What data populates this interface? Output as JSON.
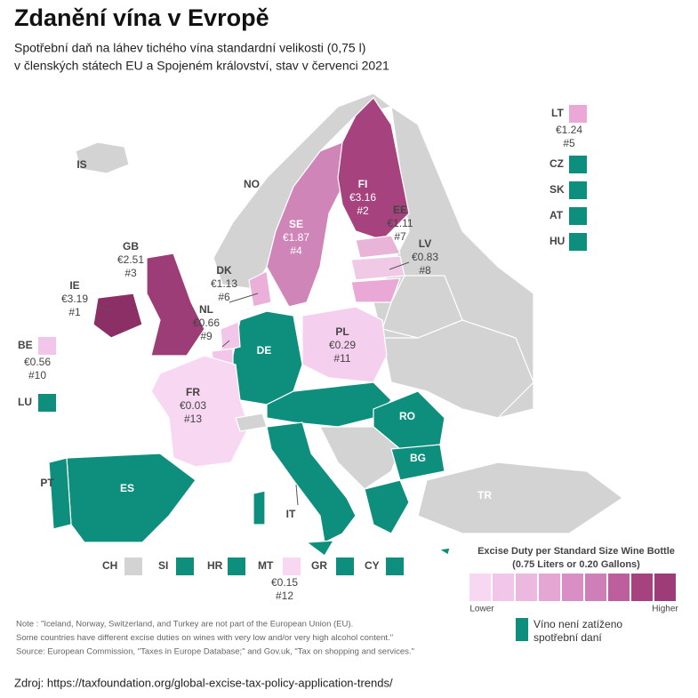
{
  "header": {
    "title": "Zdanění vína v Evropě",
    "subtitle": [
      "Spotřební daň na láhev tichého vína standardní velikosti (0,75 l)",
      "v členských státech EU a Spojeném království, stav v červenci 2021"
    ]
  },
  "map_labels": [
    {
      "code": "IS"
    },
    {
      "code": "NO"
    },
    {
      "code": "FI",
      "value": "€3.16",
      "rank": "#2"
    },
    {
      "code": "SE",
      "value": "€1.87",
      "rank": "#4"
    },
    {
      "code": "EE",
      "value": "€1.11",
      "rank": "#7"
    },
    {
      "code": "LV",
      "value": "€0.83",
      "rank": "#8"
    },
    {
      "code": "GB",
      "value": "€2.51",
      "rank": "#3"
    },
    {
      "code": "DK",
      "value": "€1.13",
      "rank": "#6"
    },
    {
      "code": "IE",
      "value": "€3.19",
      "rank": "#1"
    },
    {
      "code": "NL",
      "value": "€0.66",
      "rank": "#9"
    },
    {
      "code": "PL",
      "value": "€0.29",
      "rank": "#11"
    },
    {
      "code": "DE"
    },
    {
      "code": "FR",
      "value": "€0.03",
      "rank": "#13"
    },
    {
      "code": "RO"
    },
    {
      "code": "BG"
    },
    {
      "code": "ES"
    },
    {
      "code": "PT"
    },
    {
      "code": "IT"
    },
    {
      "code": "TR"
    }
  ],
  "side_keys": [
    {
      "code": "BE",
      "value": "€0.56",
      "rank": "#10"
    },
    {
      "code": "LU"
    },
    {
      "code": "LT",
      "value": "€1.24",
      "rank": "#5"
    },
    {
      "code": "CZ"
    },
    {
      "code": "SK"
    },
    {
      "code": "AT"
    },
    {
      "code": "HU"
    },
    {
      "code": "CH"
    },
    {
      "code": "SI"
    },
    {
      "code": "HR"
    },
    {
      "code": "MT",
      "value": "€0.15",
      "rank": "#12"
    },
    {
      "code": "GR"
    },
    {
      "code": "CY"
    }
  ],
  "legend": {
    "title": [
      "Excise Duty per Standard Size Wine Bottle",
      "(0.75 Liters or 0.20 Gallons)"
    ],
    "lower": "Lower",
    "higher": "Higher",
    "no_tax": [
      "Víno není zatíženo",
      "spotřební daní"
    ]
  },
  "note": [
    "Note : \"Iceland, Norway, Switzerland, and Turkey are not part of the European Union (EU).",
    "Some countries have different excise duties on wines with very low and/or very high alcohol content.\"",
    "Source: European Commission, \"Taxes in Europe Database;\" and Gov.uk, \"Tax on shopping and services.\""
  ],
  "source": "Zdroj: https://taxfoundation.org/global-excise-tax-policy-application-trends/"
}
